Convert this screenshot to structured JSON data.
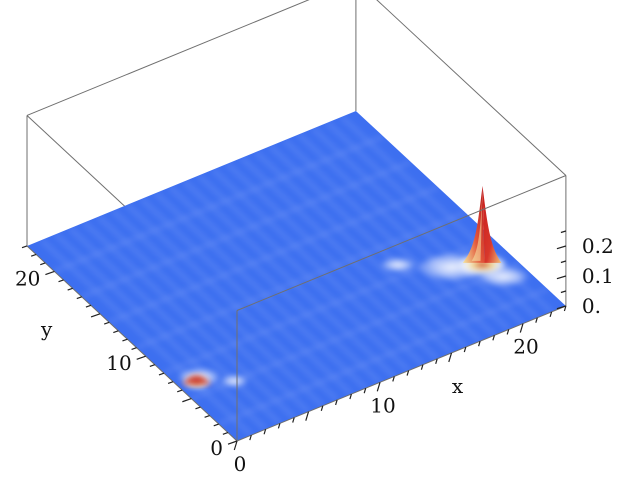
{
  "chart_data": {
    "type": "surface3d",
    "title": "",
    "xlabel": "x",
    "ylabel": "y",
    "zlabel": "",
    "xlim": [
      0,
      23
    ],
    "ylim": [
      0,
      23
    ],
    "zlim": [
      0,
      0.28
    ],
    "x_ticks": [
      {
        "value": 0,
        "label": "0"
      },
      {
        "value": 10,
        "label": "10"
      },
      {
        "value": 20,
        "label": "20"
      }
    ],
    "y_ticks": [
      {
        "value": 0,
        "label": "0"
      },
      {
        "value": 10,
        "label": "10"
      },
      {
        "value": 20,
        "label": "20"
      }
    ],
    "z_ticks": [
      {
        "value": 0,
        "label": "0."
      },
      {
        "value": 0.1,
        "label": "0.1"
      },
      {
        "value": 0.2,
        "label": "0.2"
      }
    ],
    "peaks": [
      {
        "x": 21,
        "y": 6,
        "z": 0.27,
        "description": "sharp main peak near x≈21, y≈6"
      },
      {
        "x": 1,
        "y": 6,
        "z": 0.04,
        "description": "small bump near x≈1, y≈6"
      }
    ],
    "colormap": {
      "low": "#3a6ef0",
      "mid": "#ffffff",
      "high_mid": "#f2d98a",
      "high": "#c41a1a"
    },
    "grid": false,
    "legend": "none"
  }
}
